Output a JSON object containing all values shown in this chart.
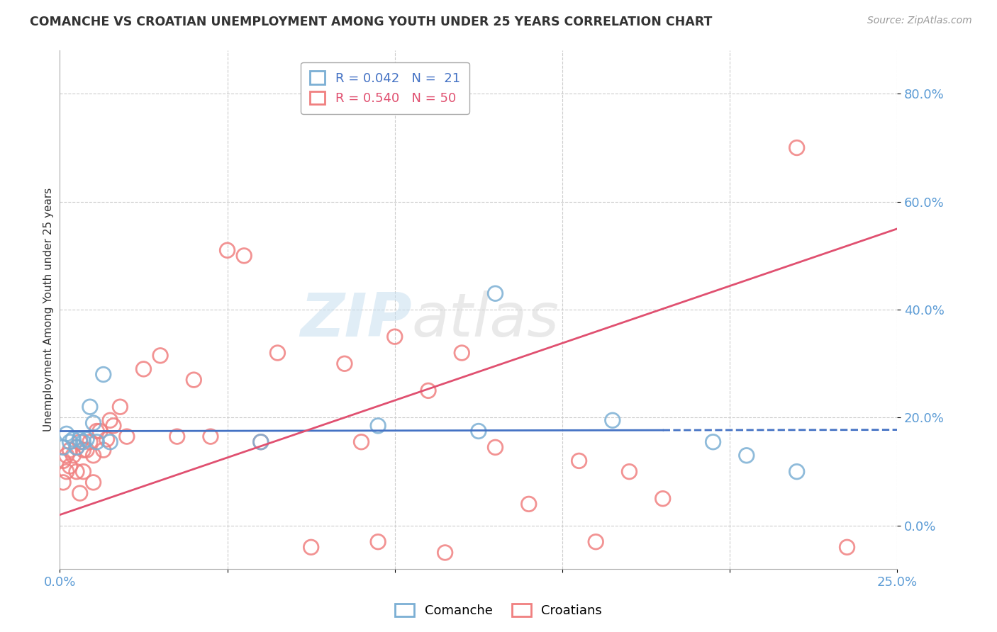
{
  "title": "COMANCHE VS CROATIAN UNEMPLOYMENT AMONG YOUTH UNDER 25 YEARS CORRELATION CHART",
  "source": "Source: ZipAtlas.com",
  "ylabel": "Unemployment Among Youth under 25 years",
  "blue_color": "#7bafd4",
  "pink_color": "#f08080",
  "blue_line_color": "#4472c4",
  "pink_line_color": "#e05070",
  "axis_tick_color": "#5b9bd5",
  "xlim": [
    0.0,
    0.25
  ],
  "ylim": [
    -0.08,
    0.88
  ],
  "ytick_vals": [
    0.0,
    0.2,
    0.4,
    0.6,
    0.8
  ],
  "comanche_x": [
    0.001,
    0.002,
    0.003,
    0.004,
    0.005,
    0.006,
    0.007,
    0.008,
    0.009,
    0.01,
    0.011,
    0.013,
    0.015,
    0.06,
    0.095,
    0.125,
    0.13,
    0.165,
    0.195,
    0.205,
    0.22
  ],
  "comanche_y": [
    0.145,
    0.17,
    0.155,
    0.16,
    0.145,
    0.16,
    0.155,
    0.16,
    0.22,
    0.19,
    0.155,
    0.28,
    0.155,
    0.155,
    0.185,
    0.175,
    0.43,
    0.195,
    0.155,
    0.13,
    0.1
  ],
  "croatian_x": [
    0.001,
    0.001,
    0.002,
    0.002,
    0.003,
    0.003,
    0.004,
    0.005,
    0.005,
    0.006,
    0.006,
    0.007,
    0.007,
    0.008,
    0.009,
    0.01,
    0.01,
    0.011,
    0.012,
    0.013,
    0.014,
    0.015,
    0.016,
    0.018,
    0.02,
    0.025,
    0.03,
    0.035,
    0.04,
    0.045,
    0.05,
    0.055,
    0.06,
    0.065,
    0.075,
    0.085,
    0.09,
    0.095,
    0.1,
    0.11,
    0.115,
    0.12,
    0.13,
    0.14,
    0.155,
    0.16,
    0.17,
    0.18,
    0.22,
    0.235
  ],
  "croatian_y": [
    0.12,
    0.08,
    0.1,
    0.13,
    0.11,
    0.14,
    0.13,
    0.145,
    0.1,
    0.155,
    0.06,
    0.14,
    0.1,
    0.14,
    0.155,
    0.13,
    0.08,
    0.175,
    0.175,
    0.14,
    0.16,
    0.195,
    0.185,
    0.22,
    0.165,
    0.29,
    0.315,
    0.165,
    0.27,
    0.165,
    0.51,
    0.5,
    0.155,
    0.32,
    -0.04,
    0.3,
    0.155,
    -0.03,
    0.35,
    0.25,
    -0.05,
    0.32,
    0.145,
    0.04,
    0.12,
    -0.03,
    0.1,
    0.05,
    0.7,
    -0.04
  ]
}
